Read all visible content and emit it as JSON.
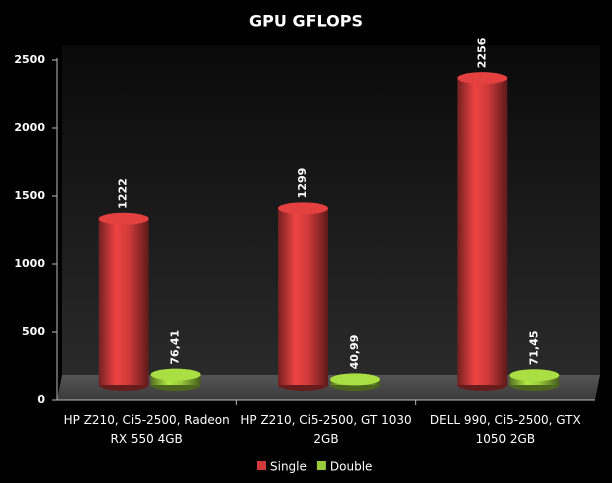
{
  "chart_data": {
    "type": "bar",
    "title": "GPU GFLOPS",
    "categories": [
      "HP Z210, Ci5-2500, Radeon RX 550 4GB",
      "HP Z210, Ci5-2500, GT 1030 2GB",
      "DELL 990, Ci5-2500, GTX 1050 2GB"
    ],
    "series": [
      {
        "name": "Single",
        "color": "#d03a3a",
        "values": [
          1222,
          1299,
          2256
        ]
      },
      {
        "name": "Double",
        "color": "#9acb3c",
        "values": [
          76.41,
          40.99,
          71.45
        ],
        "value_labels": [
          "76,41",
          "40,99",
          "71,45"
        ]
      }
    ],
    "ylim": [
      0,
      2500
    ],
    "yticks": [
      0,
      500,
      1000,
      1500,
      2000,
      2500
    ],
    "grid": false,
    "legend": "bottom"
  }
}
